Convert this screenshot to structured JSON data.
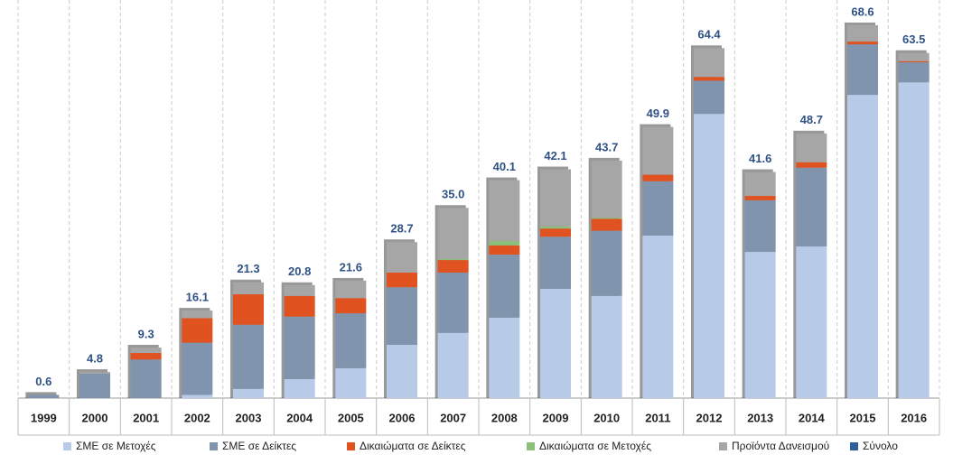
{
  "chart_data": {
    "type": "stacked_bar",
    "categories": [
      "1999",
      "2000",
      "2001",
      "2002",
      "2003",
      "2004",
      "2005",
      "2006",
      "2007",
      "2008",
      "2009",
      "2010",
      "2011",
      "2012",
      "2013",
      "2014",
      "2015",
      "2016"
    ],
    "series": [
      {
        "name": "ΣΜΕ σε Μετοχές",
        "color": "#b7cbe8",
        "values": [
          0,
          0,
          0,
          0.6,
          1.7,
          3.5,
          5.5,
          9.8,
          12.0,
          14.8,
          20.1,
          18.8,
          29.9,
          52.3,
          26.9,
          27.9,
          55.8,
          58.1
        ]
      },
      {
        "name": "ΣΜΕ σε Δείκτες",
        "color": "#8094ad",
        "values": [
          0.6,
          4.5,
          7.1,
          9.6,
          11.8,
          11.5,
          10.1,
          10.6,
          11.1,
          11.6,
          9.6,
          12.0,
          10.0,
          6.1,
          9.5,
          14.5,
          9.3,
          3.7
        ]
      },
      {
        "name": "Δικαιώματα σε Δείκτες",
        "color": "#e0521f",
        "values": [
          0,
          0,
          1.2,
          4.5,
          5.6,
          3.8,
          2.8,
          2.7,
          2.3,
          1.7,
          1.5,
          2.2,
          1.2,
          0.7,
          0.8,
          1.0,
          0.5,
          0.2
        ]
      },
      {
        "name": "Δικαιώματα σε Μετοχές",
        "color": "#8cc07a",
        "values": [
          0,
          0,
          0,
          0,
          0,
          0,
          0,
          0,
          0.2,
          0.8,
          0.4,
          0.2,
          0,
          0,
          0,
          0,
          0,
          0
        ]
      },
      {
        "name": "Προϊόντα Δανεισμού",
        "color": "#a6a6a6",
        "values": [
          0,
          0.3,
          1.0,
          1.4,
          2.2,
          2.0,
          3.2,
          5.6,
          9.4,
          11.2,
          10.5,
          10.5,
          8.8,
          5.3,
          4.4,
          5.3,
          3.0,
          1.5
        ]
      },
      {
        "name": "Σύνολο",
        "color": "#2e5e9c",
        "values": [
          0.6,
          4.8,
          9.3,
          16.1,
          21.3,
          20.8,
          21.6,
          28.7,
          35.0,
          40.1,
          42.1,
          43.7,
          49.9,
          64.4,
          41.6,
          48.7,
          68.6,
          63.5
        ],
        "value_labels": [
          "0.6",
          "4.8",
          "9.3",
          "16.1",
          "21.3",
          "20.8",
          "21.6",
          "28.7",
          "35.0",
          "40.1",
          "42.1",
          "43.7",
          "49.9",
          "64.4",
          "41.6",
          "48.7",
          "68.6",
          "63.5"
        ]
      }
    ]
  }
}
